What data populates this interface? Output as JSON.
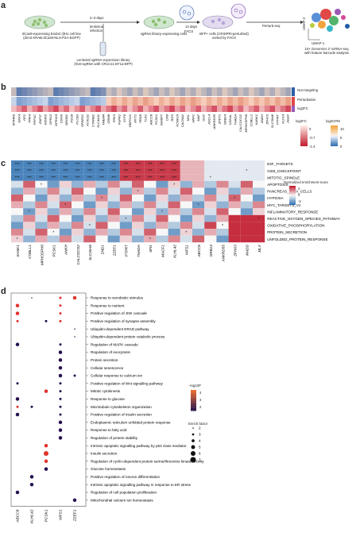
{
  "panel_a": {
    "letter": "a",
    "step1": "2–3 days",
    "step1_sub": "lentivirus\ninfection",
    "step2": "14 days",
    "step3": "FACS",
    "step4": "Perturb-seq",
    "cell_line": "dCas9-expressing EndoC-βH1 cell line\n(Zim3 KRAB-dCas9-NLS-P2A-EGFP)",
    "library": "Lentiviral sgRNA-expression library\n(hU6-sgRNA with CR1Cs1-EF1α-BFP)",
    "sgrna_cells": "sgRNA library-expressing cells",
    "bfp_cells": "BFP+ cells (CRISPRi-perturbed)\nsorted by FACS",
    "genomics": "10× Genomics 3′ scRNA-seq\nwith feature barcode analysis",
    "umap1": "UMAP-1",
    "umap2": "UMAP-2"
  },
  "panel_b": {
    "letter": "b",
    "row_labels": [
      "Non-targeting",
      "Perturbation",
      "log2FC"
    ],
    "genes": [
      "MTMR9",
      "DKK4",
      "GP2",
      "PRK4",
      "PPP1C",
      "ZNF37",
      "KIDINS",
      "GPR12",
      "GPR119",
      "CDKN",
      "NRGB1",
      "FSCB",
      "PLCB3",
      "SPRED1",
      "KCNJ11",
      "CTNNB1",
      "SLC4A11",
      "TMEM4",
      "GRM8",
      "FRK3",
      "FGFR1",
      "SYF6",
      "RBFOX1",
      "MYT1",
      "PEKB",
      "TLR1",
      "ABCC8",
      "PCSK1",
      "IGFBP7",
      "CPB",
      "RGS",
      "KCNK16",
      "CACNA1",
      "MSL",
      "HNF1",
      "MAF",
      "GCK",
      "ASCL4",
      "ANKRD55",
      "ZFET1",
      "GRB14",
      "CDKAL",
      "THADA",
      "CALCOCO2",
      "MPHOSPH9",
      "COBLL1",
      "KANK1",
      "ANKH",
      "ZFHX3",
      "SLC30A8",
      "PTPRT",
      "KLF14",
      "PRPF"
    ],
    "legend_fc": "log2FC",
    "legend_fc_ticks": [
      "0",
      "-0.7",
      "-1.4"
    ],
    "legend_cpm": "log2CPM",
    "legend_cpm_ticks": [
      "10",
      "5",
      "0"
    ]
  },
  "panel_c": {
    "letter": "c",
    "legend_title": "Normalized enrichment score",
    "legend_ticks": [
      "2",
      "0",
      "-2"
    ],
    "pathways": [
      "E2F_TARGETS",
      "G2M_CHECKPOINT",
      "MITOTIC_SPINDLE",
      "APOPTOSIS",
      "PANCREAS_BETA_CELLS",
      "HYPOXIA",
      "MYC_TARGETS_V1",
      "INFLAMMATORY_RESPONSE",
      "REACTIVE_OXYGEN_SPECIES_PATHWAY",
      "OXIDATIVE_PHOSPHORYLATION",
      "PROTEIN_SECRETION",
      "UNFOLDED_PROTEIN_RESPONSE"
    ],
    "genes": [
      "KANK1",
      "COBLL1",
      "MPHOSPH9",
      "PCSK1",
      "ANKH",
      "CALCOCO2",
      "SLC30A8",
      "SND1",
      "ZZEF1",
      "PTPRT",
      "THADA",
      "SFI1",
      "MACF1",
      "KLHL42",
      "WFS1",
      "ABCC8",
      "GRB14",
      "ANKRD55",
      "ZFHX3",
      "MADD",
      "MLX"
    ]
  },
  "panel_d": {
    "letter": "d",
    "genes": [
      "ABCC8",
      "KLHL42",
      "PCSK1",
      "WFS1",
      "ZZEF1"
    ],
    "terms": [
      "Response to xenobiotic stimulus",
      "Response to nutrient",
      "Positive regulation of JNK cascade",
      "Positive regulation of synapse assembly",
      "Ubiquitin-dependent ERAD pathway",
      "Ubiquitin-dependent protein catabolic process",
      "Regulation of MAPK cascade",
      "Regulation of exocytosis",
      "Protein secretion",
      "Cellular senescence",
      "Cellular response to calcium ion",
      "Positive regulation of Wnt signalling pathway",
      "Mitotic cytokinesis",
      "Response to glucose",
      "Microtubule cytoskeleton organization",
      "Positive regulation of insulin secretion",
      "Endoplasmic reticulum unfolded protein response",
      "Response to fatty acid",
      "Regulation of protein stability",
      "Intrinsic apoptotic signalling pathway by p53 class mediator",
      "Insulin secretion",
      "Regulation of cyclin-dependent protein serine/threonine kinase activity",
      "Glucose homeostasis",
      "Positive regulation of neuron differentiation",
      "Intrinsic apoptotic signalling pathway in response to ER stress",
      "Regulation of cell population proliferation",
      "Mitochondrial calcium ion homeostasis"
    ],
    "legend_p_title": "−log10P",
    "legend_p_ticks": [
      "4",
      "3",
      "2"
    ],
    "legend_size_title": "Enrich factor",
    "legend_size_ticks": [
      "2",
      "3",
      "4",
      "5",
      "6",
      "7"
    ]
  },
  "colors": {
    "high": "#c0182a",
    "mid": "#f7f7f7",
    "low": "#2c6fb0",
    "dot_dark": "#25114f",
    "dot_red": "#e0322b"
  }
}
